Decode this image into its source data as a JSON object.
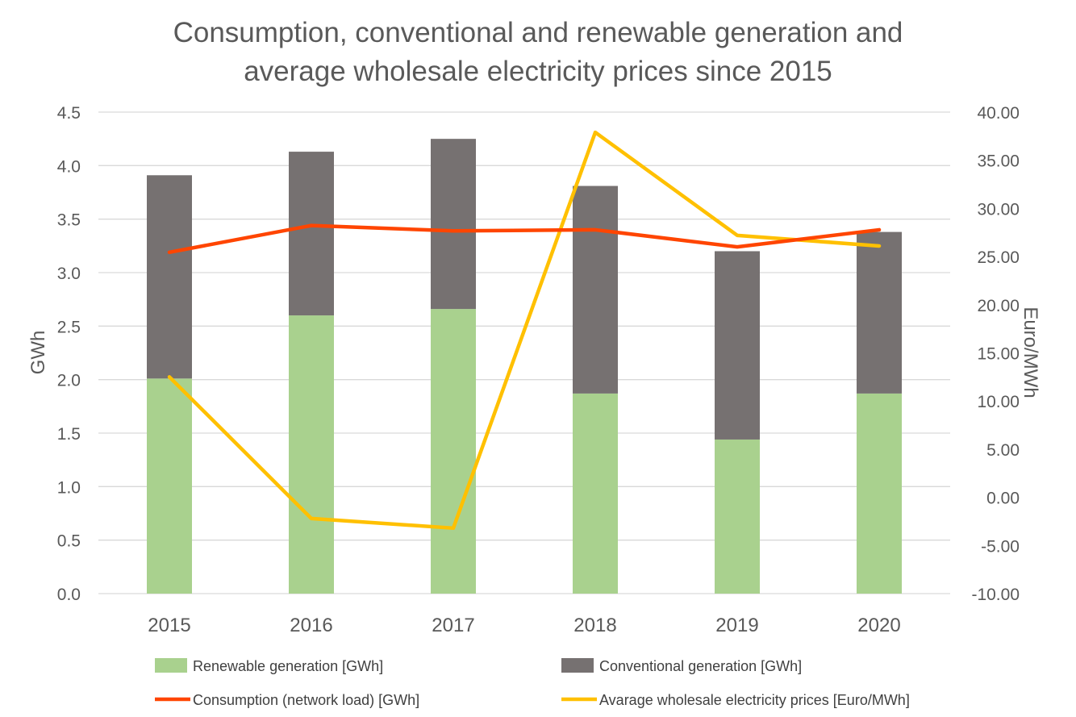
{
  "chart_data": {
    "type": "bar",
    "title_line1": "Consumption, conventional and renewable generation and",
    "title_line2": "average wholesale electricity prices since 2015",
    "categories": [
      "2015",
      "2016",
      "2017",
      "2018",
      "2019",
      "2020"
    ],
    "y_left": {
      "label": "GWh",
      "range": [
        0,
        4.5
      ],
      "ticks": [
        "0.0",
        "0.5",
        "1.0",
        "1.5",
        "2.0",
        "2.5",
        "3.0",
        "3.5",
        "4.0",
        "4.5"
      ]
    },
    "y_right": {
      "label": "Euro/MWh",
      "range": [
        -10,
        40
      ],
      "ticks": [
        "-10.00",
        "-5.00",
        "0.00",
        "5.00",
        "10.00",
        "15.00",
        "20.00",
        "25.00",
        "30.00",
        "35.00",
        "40.00"
      ]
    },
    "grid": true,
    "legend_position": "bottom",
    "series": [
      {
        "name": "Renewable generation [GWh]",
        "kind": "bar-stacked",
        "axis": "left",
        "color": "#a9d18e",
        "values": [
          2.01,
          2.6,
          2.66,
          1.87,
          1.44,
          1.87
        ]
      },
      {
        "name": "Conventional generation [GWh]",
        "kind": "bar-stacked",
        "axis": "left",
        "color": "#767171",
        "values": [
          1.9,
          1.53,
          1.59,
          1.94,
          1.76,
          1.51
        ]
      },
      {
        "name": "Consumption (network load) [GWh]",
        "kind": "line",
        "axis": "left",
        "color": "#ff4500",
        "values": [
          3.19,
          3.44,
          3.39,
          3.4,
          3.24,
          3.4
        ]
      },
      {
        "name": "Avarage wholesale electricity prices [Euro/MWh]",
        "kind": "line",
        "axis": "right",
        "color": "#ffc000",
        "values": [
          12.5,
          -2.2,
          -3.2,
          37.9,
          27.2,
          26.1
        ]
      }
    ]
  }
}
